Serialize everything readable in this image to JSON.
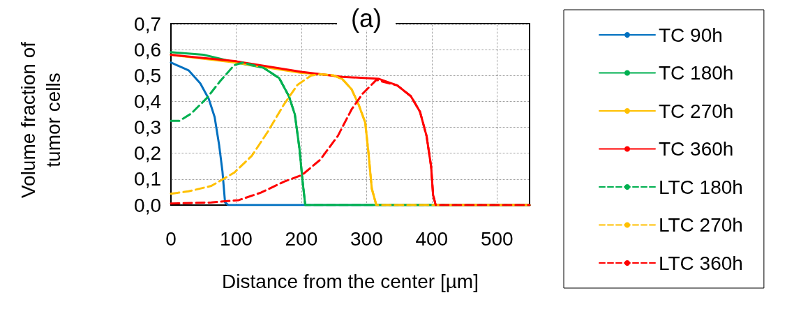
{
  "chart_data": {
    "type": "line",
    "title": "(a)",
    "xlabel": "Distance from the center [µm]",
    "ylabel": "Volume fraction of\ntumor cells",
    "xlim": [
      0,
      550
    ],
    "xticks": [
      0,
      100,
      200,
      300,
      400,
      500
    ],
    "ylim": [
      0,
      0.7
    ],
    "yticks": [
      {
        "value": 0,
        "label": "0,0"
      },
      {
        "value": 0.1,
        "label": "0,1"
      },
      {
        "value": 0.2,
        "label": "0,2"
      },
      {
        "value": 0.3,
        "label": "0,3"
      },
      {
        "value": 0.4,
        "label": "0,4"
      },
      {
        "value": 0.5,
        "label": "0,5"
      },
      {
        "value": 0.6,
        "label": "0,6"
      },
      {
        "value": 0.7,
        "label": "0,7"
      }
    ],
    "grid": true,
    "legend": "right",
    "marker": "none",
    "series": [
      {
        "name": "TC 90h",
        "color": "#0070c0",
        "line_style": "solid",
        "x": [
          0,
          27,
          45,
          58,
          67,
          74,
          79,
          83,
          88,
          550
        ],
        "values": [
          0.55,
          0.52,
          0.47,
          0.41,
          0.34,
          0.23,
          0.13,
          0.01,
          0,
          0
        ]
      },
      {
        "name": "TC 180h",
        "color": "#00b050",
        "line_style": "solid",
        "x": [
          0,
          50,
          100,
          142,
          166,
          181,
          190,
          197,
          202,
          206,
          550
        ],
        "values": [
          0.59,
          0.58,
          0.55,
          0.53,
          0.49,
          0.42,
          0.35,
          0.22,
          0.09,
          0,
          0
        ]
      },
      {
        "name": "TC 270h",
        "color": "#ffc000",
        "line_style": "solid",
        "x": [
          0,
          100,
          200,
          230,
          250,
          263,
          277,
          288,
          298,
          303,
          308,
          315,
          550
        ],
        "values": [
          0.58,
          0.55,
          0.51,
          0.505,
          0.5,
          0.486,
          0.447,
          0.387,
          0.318,
          0.2,
          0.064,
          0,
          0
        ]
      },
      {
        "name": "TC 360h",
        "color": "#ff0000",
        "line_style": "solid",
        "x": [
          0,
          100,
          200,
          263,
          319,
          347,
          368,
          382,
          392,
          399,
          402,
          406,
          550
        ],
        "values": [
          0.58,
          0.555,
          0.514,
          0.495,
          0.487,
          0.462,
          0.42,
          0.36,
          0.267,
          0.149,
          0.04,
          0,
          0
        ]
      },
      {
        "name": "LTC 180h",
        "color": "#00b050",
        "line_style": "dashed",
        "x": [
          0,
          13,
          31,
          55,
          76,
          97,
          110,
          142,
          166,
          181,
          190,
          197,
          202,
          206,
          550
        ],
        "values": [
          0.325,
          0.325,
          0.353,
          0.413,
          0.48,
          0.54,
          0.55,
          0.53,
          0.49,
          0.42,
          0.35,
          0.22,
          0.09,
          0,
          0
        ]
      },
      {
        "name": "LTC 270h",
        "color": "#ffc000",
        "line_style": "dashed",
        "x": [
          0,
          27,
          62,
          97,
          124,
          149,
          173,
          194,
          215,
          230,
          250,
          263,
          277,
          288,
          298,
          303,
          308,
          315,
          550
        ],
        "values": [
          0.044,
          0.053,
          0.074,
          0.125,
          0.19,
          0.285,
          0.387,
          0.464,
          0.5,
          0.505,
          0.5,
          0.486,
          0.447,
          0.387,
          0.318,
          0.2,
          0.064,
          0,
          0
        ]
      },
      {
        "name": "LTC 360h",
        "color": "#ff0000",
        "line_style": "dashed",
        "x": [
          0,
          62,
          104,
          138,
          173,
          201,
          229,
          256,
          277,
          294,
          315,
          347,
          368,
          382,
          392,
          399,
          402,
          406,
          550
        ],
        "values": [
          0.006,
          0.01,
          0.019,
          0.048,
          0.09,
          0.116,
          0.175,
          0.267,
          0.369,
          0.43,
          0.483,
          0.462,
          0.42,
          0.36,
          0.267,
          0.149,
          0.04,
          0,
          0
        ]
      }
    ]
  }
}
